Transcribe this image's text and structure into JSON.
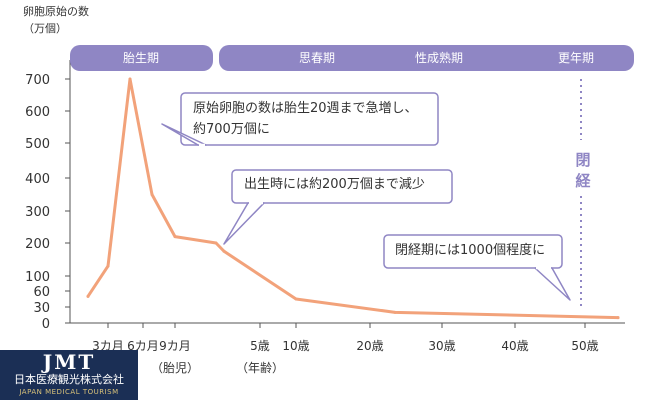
{
  "chart_data": {
    "type": "line",
    "title": "",
    "ylabel_lines": [
      "卵胞原始の数",
      "（万個）"
    ],
    "y_ticks": [
      0,
      30,
      60,
      100,
      200,
      300,
      400,
      500,
      600,
      700
    ],
    "x_ticks": [
      {
        "label": "3カ月",
        "sub": ""
      },
      {
        "label": "6カ月",
        "sub": ""
      },
      {
        "label": "9カ月",
        "sub": "（胎児）"
      },
      {
        "label": "5歳",
        "sub": "（年齢）"
      },
      {
        "label": "10歳",
        "sub": ""
      },
      {
        "label": "20歳",
        "sub": ""
      },
      {
        "label": "30歳",
        "sub": ""
      },
      {
        "label": "40歳",
        "sub": ""
      },
      {
        "label": "50歳",
        "sub": ""
      }
    ],
    "series": [
      {
        "name": "",
        "color": "#f2a27a",
        "points": [
          {
            "x": "1カ月",
            "y": 50
          },
          {
            "x": "3カ月",
            "y": 130
          },
          {
            "x": "5カ月",
            "y": 700
          },
          {
            "x": "7カ月",
            "y": 350
          },
          {
            "x": "9カ月",
            "y": 220
          },
          {
            "x": "出生",
            "y": 200
          },
          {
            "x": "3歳",
            "y": 175
          },
          {
            "x": "10歳",
            "y": 45
          },
          {
            "x": "25歳",
            "y": 20
          },
          {
            "x": "55歳",
            "y": 10
          }
        ]
      }
    ],
    "periods": [
      "胎生期",
      "思春期",
      "性成熟期",
      "更年期"
    ],
    "annotations": [
      [
        "原始卵胞の数は胎生20週まで急増し、",
        "約700万個に"
      ],
      [
        "出生時には約200万個まで減少"
      ],
      [
        "閉経期には1000個程度に"
      ]
    ],
    "vertical_marker": "閉経",
    "colors": {
      "band": "#8f86c4",
      "line": "#f2a27a",
      "callout_border": "#8f86c4",
      "axis": "#555555"
    }
  },
  "logo": {
    "mark": "JMT",
    "name": "日本医療観光株式会社",
    "sub": "JAPAN MEDICAL TOURISM"
  }
}
